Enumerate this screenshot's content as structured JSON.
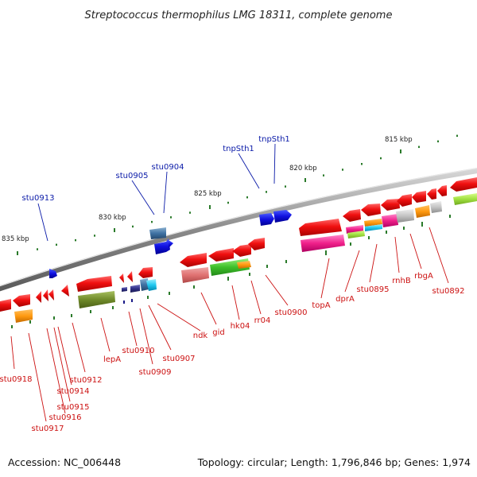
{
  "title": "Streptococcus thermophilus LMG 18311, complete genome",
  "footer": {
    "accession": "Accession: NC_006448",
    "summary": "Topology: circular; Length: 1,796,846 bp; Genes: 1,974"
  },
  "colors": {
    "forward_label": "#0a1aa8",
    "reverse_label": "#cc1111",
    "backbone": "#9a9a9a",
    "tick": "#2a7a2a"
  },
  "scale_ticks": [
    {
      "label": "815 kbp"
    },
    {
      "label": "820 kbp"
    },
    {
      "label": "825 kbp"
    },
    {
      "label": "830 kbp"
    },
    {
      "label": "835 kbp"
    }
  ],
  "forward_labels": [
    {
      "text": "stu0913"
    },
    {
      "text": "stu0905"
    },
    {
      "text": "stu0904"
    },
    {
      "text": "tnpSth1"
    },
    {
      "text": "tnpSth1"
    }
  ],
  "reverse_labels": [
    {
      "text": "stu0918"
    },
    {
      "text": "stu0914"
    },
    {
      "text": "stu0912"
    },
    {
      "text": "stu0915"
    },
    {
      "text": "stu0916"
    },
    {
      "text": "stu0917"
    },
    {
      "text": "lepA"
    },
    {
      "text": "stu0910"
    },
    {
      "text": "stu0909"
    },
    {
      "text": "stu0907"
    },
    {
      "text": "ndk"
    },
    {
      "text": "gid"
    },
    {
      "text": "hk04"
    },
    {
      "text": "rr04"
    },
    {
      "text": "stu0900"
    },
    {
      "text": "topA"
    },
    {
      "text": "dprA"
    },
    {
      "text": "stu0895"
    },
    {
      "text": "rnhB"
    },
    {
      "text": "rbgA"
    },
    {
      "text": "stu0892"
    }
  ]
}
